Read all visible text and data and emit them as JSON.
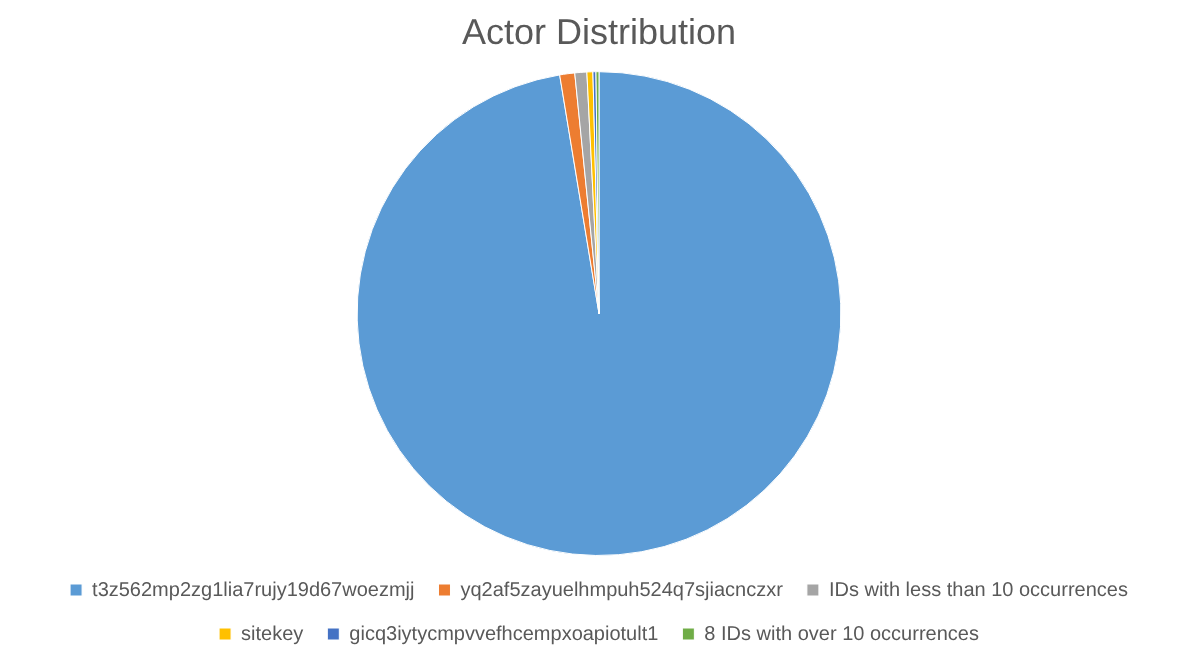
{
  "chart_data": {
    "type": "pie",
    "title": "Actor Distribution",
    "categories": [
      "t3z562mp2zg1lia7rujy19d67woezmjj",
      "yq2af5zayuelhmpuh524q7sjiacnczxr",
      "IDs with less than 10 occurrences",
      "sitekey",
      "gicq3iytycmpvvefhcempxoapiotult1",
      "8 IDs with over 10 occurrences"
    ],
    "values": [
      97.4,
      1.0,
      0.8,
      0.4,
      0.2,
      0.2
    ],
    "colors": [
      "#5b9bd5",
      "#ed7d31",
      "#a5a5a5",
      "#ffc000",
      "#4472c4",
      "#70ad47"
    ],
    "legend": "bottom"
  }
}
